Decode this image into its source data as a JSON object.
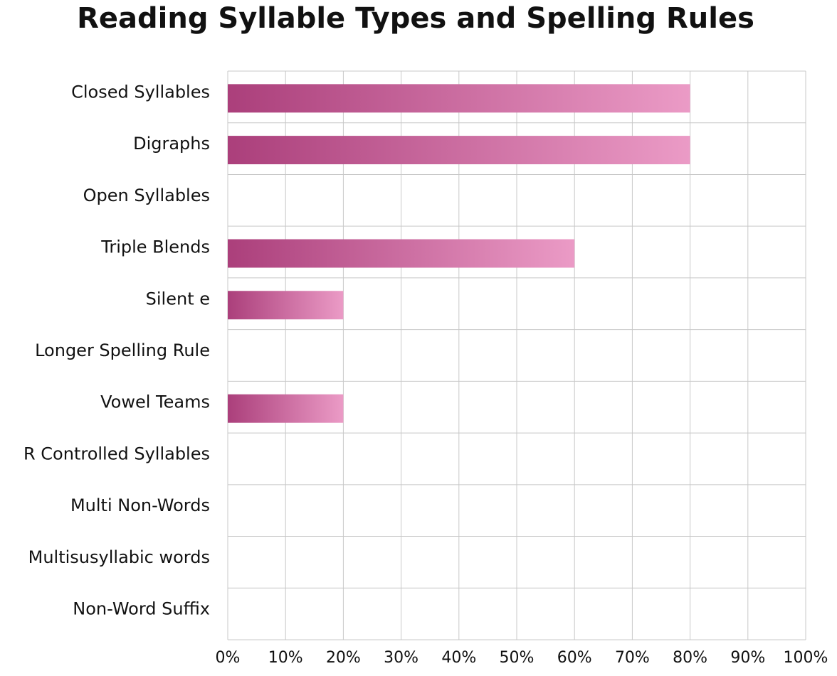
{
  "chart_data": {
    "type": "barh",
    "title": "Reading Syllable Types and Spelling Rules",
    "categories": [
      "Closed Syllables",
      "Digraphs",
      "Open Syllables",
      "Triple Blends",
      "Silent e",
      "Longer Spelling Rule",
      "Vowel Teams",
      "R Controlled Syllables",
      "Multi Non-Words",
      "Multisusyllabic words",
      "Non-Word Suffix"
    ],
    "values": [
      80,
      80,
      0,
      60,
      20,
      0,
      20,
      0,
      0,
      0,
      0
    ],
    "color": [
      "#ab3f7b",
      "#eb9bc6"
    ],
    "xlim": [
      0,
      100
    ],
    "xticks": [
      {
        "value": 0,
        "label": "0%"
      },
      {
        "value": 10,
        "label": "10%"
      },
      {
        "value": 20,
        "label": "20%"
      },
      {
        "value": 30,
        "label": "30%"
      },
      {
        "value": 40,
        "label": "40%"
      },
      {
        "value": 50,
        "label": "50%"
      },
      {
        "value": 60,
        "label": "60%"
      },
      {
        "value": 70,
        "label": "70%"
      },
      {
        "value": 80,
        "label": "80%"
      },
      {
        "value": 90,
        "label": "90%"
      },
      {
        "value": 100,
        "label": "100%"
      }
    ],
    "grid": true
  }
}
